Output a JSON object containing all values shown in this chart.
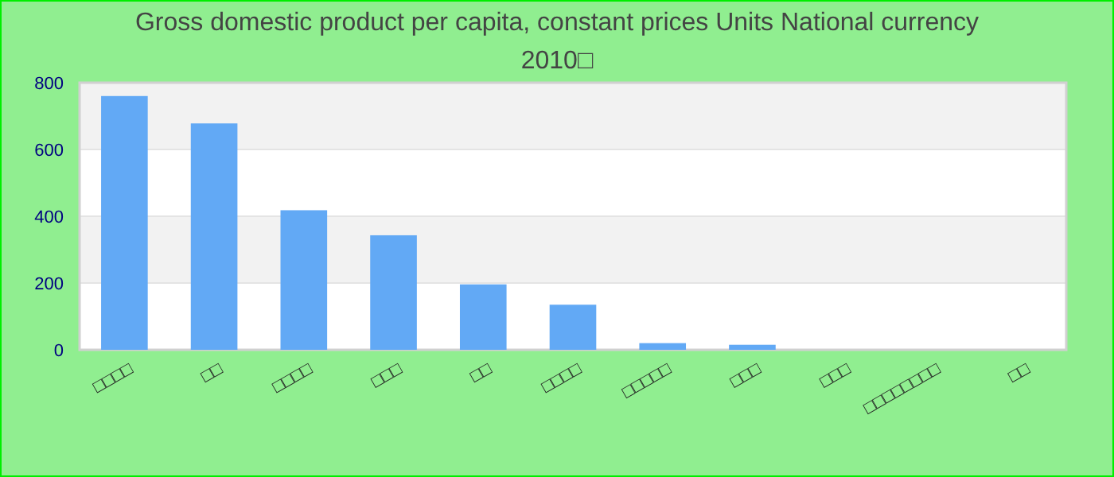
{
  "chart_data": {
    "type": "bar",
    "title": "Gross domestic product per capita, constant prices Units National currency\n2010□",
    "categories": [
      "□□□□",
      "□□",
      "□□□□",
      "□□□",
      "□□",
      "□□□□",
      "□□□□□",
      "□□□",
      "□□□",
      "□□□□□□□□",
      "□□"
    ],
    "values": [
      760,
      678,
      418,
      343,
      196,
      135,
      20,
      15,
      null,
      null,
      null
    ],
    "color": "#62a9f5",
    "ylim": [
      0,
      800
    ],
    "yticks": [
      0,
      200,
      400,
      600,
      800
    ],
    "grid": true
  }
}
